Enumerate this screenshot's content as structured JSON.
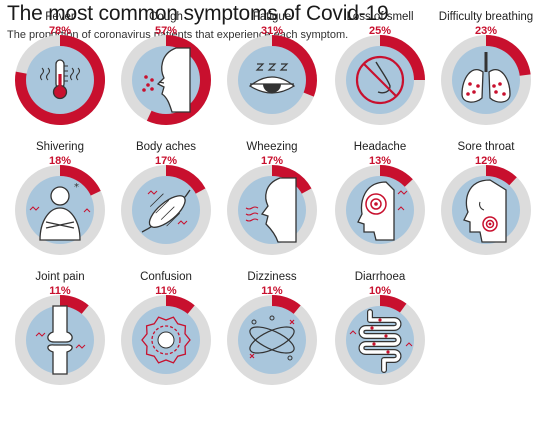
{
  "title": "The most common symptoms of Covid-19",
  "subtitle": "The proportion of coronavirus patients that experience each symptom.",
  "colors": {
    "accent": "#c8102e",
    "ring": "#dcdcdc",
    "inner": "#a9c6dc",
    "stroke": "#333333"
  },
  "chart_data": {
    "type": "pie",
    "title": "The most common symptoms of Covid-19",
    "subtitle": "The proportion of coronavirus patients that experience each symptom.",
    "unit": "%",
    "categories": [
      "Fever",
      "Cough",
      "Fatigue",
      "Loss of smell",
      "Difficulty breathing",
      "Shivering",
      "Body aches",
      "Wheezing",
      "Headache",
      "Sore throat",
      "Joint pain",
      "Confusion",
      "Dizziness",
      "Diarrhoea"
    ],
    "values": [
      78,
      57,
      31,
      25,
      23,
      18,
      17,
      17,
      13,
      12,
      11,
      11,
      11,
      10
    ],
    "labels": [
      "78%",
      "57%",
      "31%",
      "25%",
      "23%",
      "18%",
      "17%",
      "17%",
      "13%",
      "12%",
      "11%",
      "11%",
      "11%",
      "10%"
    ],
    "icons": [
      "thermometer-icon",
      "cough-face-icon",
      "sleepy-eye-icon",
      "crossed-nose-icon",
      "lungs-icon",
      "shivering-person-icon",
      "muscle-icon",
      "wheezing-mouth-icon",
      "headache-icon",
      "sore-throat-icon",
      "joint-icon",
      "confusion-brain-icon",
      "dizziness-icon",
      "intestine-icon"
    ]
  }
}
